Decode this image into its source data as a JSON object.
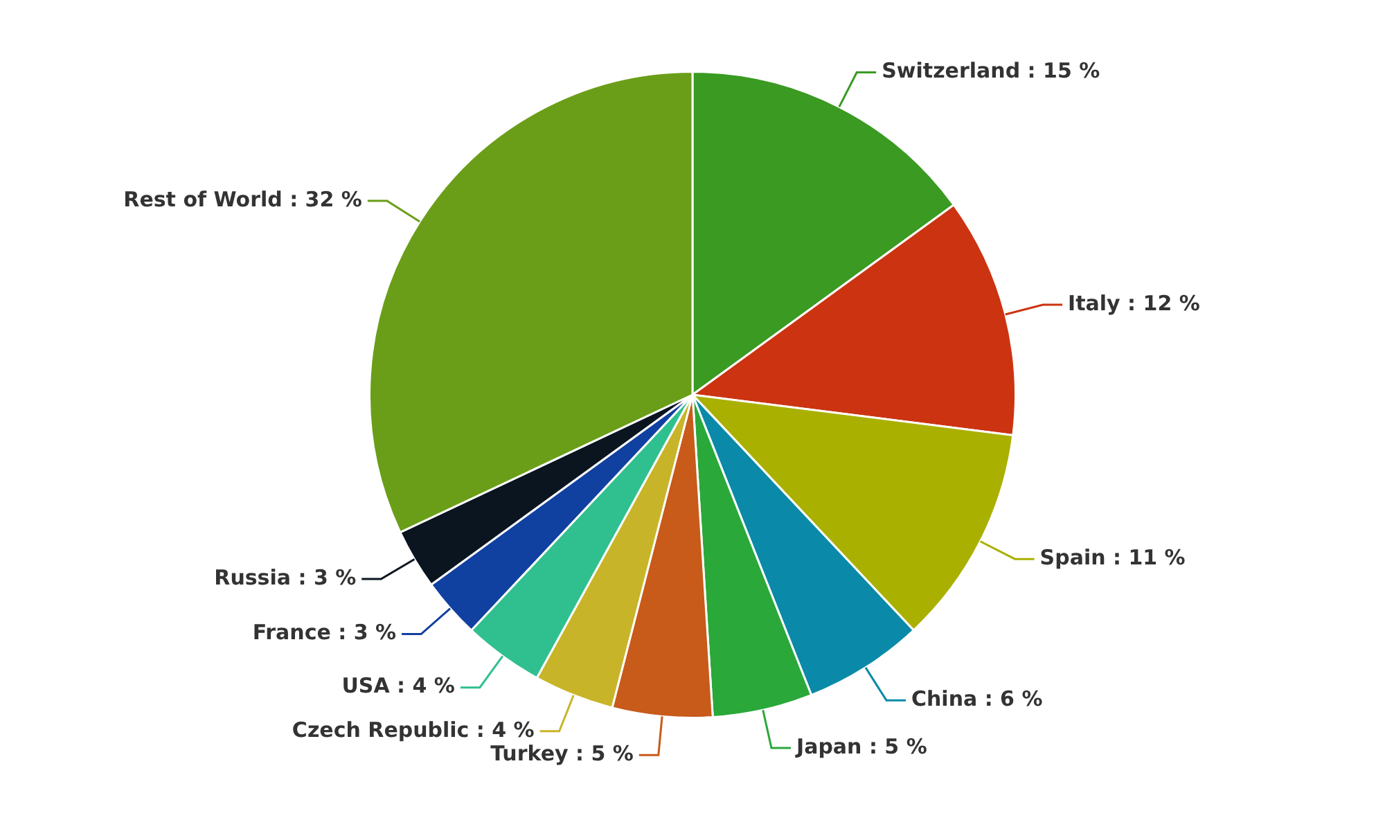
{
  "chart_data": {
    "type": "pie",
    "categories": [
      "Switzerland",
      "Italy",
      "Spain",
      "China",
      "Japan",
      "Turkey",
      "Czech Republic",
      "USA",
      "France",
      "Russia",
      "Rest of World"
    ],
    "values": [
      15,
      12,
      11,
      6,
      5,
      5,
      4,
      4,
      3,
      3,
      32
    ],
    "value_labels": [
      "15 %",
      "12 %",
      "11 %",
      "6 %",
      "5 %",
      "5 %",
      "4 %",
      "4 %",
      "3 %",
      "3 %",
      "32 %"
    ],
    "colors": [
      "#3a9a22",
      "#cc3311",
      "#aab000",
      "#0a8aa8",
      "#2aa83a",
      "#c85a1a",
      "#c8b428",
      "#30c090",
      "#1040a0",
      "#0a1520",
      "#6a9e18"
    ],
    "legend": false
  }
}
